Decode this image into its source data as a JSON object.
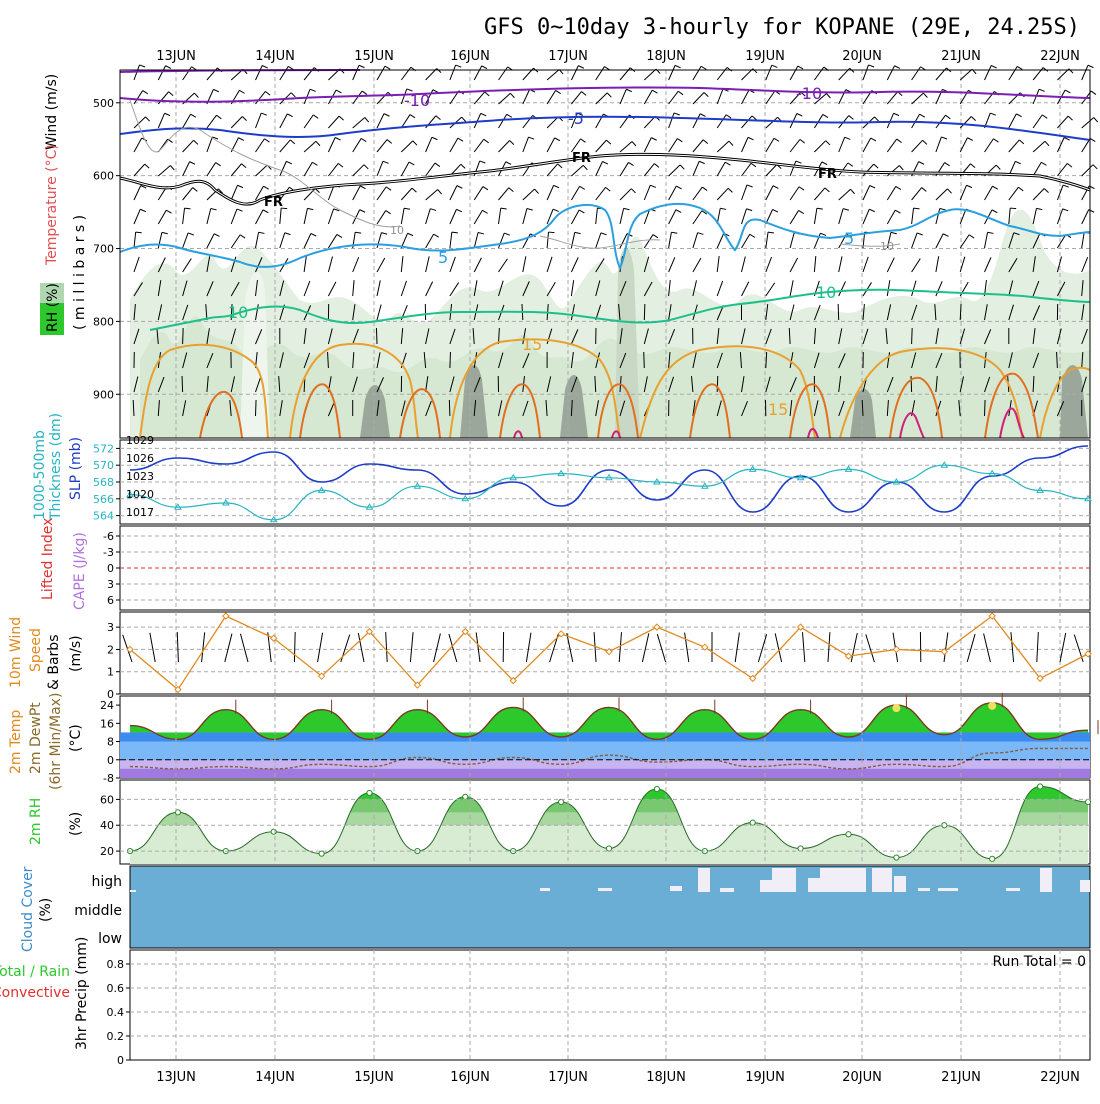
{
  "title": "GFS 0~10day 3-hourly for KOPANE (29E, 24.25S)",
  "dates": [
    "13JUN",
    "14JUN",
    "15JUN",
    "16JUN",
    "17JUN",
    "18JUN",
    "19JUN",
    "20JUN",
    "21JUN",
    "22JUN"
  ],
  "panels": {
    "upper_air": {
      "labels": [
        "Wind (m/s)",
        "Temperature (°C)",
        "( m i l l i b a r s )",
        "RH (%)"
      ],
      "yticks": [
        500,
        600,
        700,
        800,
        900
      ],
      "contour_labels": {
        "minus10": "-10",
        "minus5": "-5",
        "fr": "FR",
        "c5": "5",
        "c10": "10",
        "c15": "15",
        "rh10": "10"
      }
    },
    "slp": {
      "labels": [
        "1000-500mb",
        "Thickness (dm)",
        "SLP (mb)"
      ],
      "left_ticks": [
        572,
        570,
        568,
        566,
        564
      ],
      "right_ticks": [
        1029,
        1026,
        1023,
        1020,
        1017
      ]
    },
    "cape": {
      "labels": [
        "Lifted Index",
        "CAPE (J/kg)"
      ],
      "ticks": [
        "-6",
        "-3",
        "0",
        "3",
        "6"
      ]
    },
    "wind10m": {
      "labels": [
        "10m Wind",
        "Speed",
        "& Barbs",
        "(m/s)"
      ],
      "ticks": [
        3,
        2,
        1,
        0
      ]
    },
    "temp2m": {
      "labels": [
        "2m Temp",
        "2m DewPt",
        "(6hr Min/Max)",
        "(°C)"
      ],
      "ticks": [
        24,
        16,
        8,
        0,
        -8
      ]
    },
    "rh2m": {
      "labels": [
        "2m RH",
        "(%)"
      ],
      "ticks": [
        60,
        40,
        20
      ]
    },
    "cloud": {
      "labels": [
        "Cloud Cover",
        "(%)"
      ],
      "levels": [
        "high",
        "middle",
        "low"
      ]
    },
    "precip": {
      "labels": [
        "Total / Rain",
        "Convective",
        "3hr Precip (mm)"
      ],
      "ticks": [
        "0.8",
        "0.6",
        "0.4",
        "0.2",
        "0"
      ],
      "run_total": "Run Total = 0"
    }
  },
  "colors": {
    "slp": "#1e3cc8",
    "thickness": "#28b4c0",
    "speed": "#e08a1e",
    "temp_fill": "#2cc82c",
    "dew_fill": "#3c8cf0",
    "rh_fill": "#2cc82c",
    "cloud": "#6aaed6",
    "lifted": "#e03030",
    "cape": "#b070e0"
  },
  "chart_data": [
    {
      "type": "line",
      "title": "1000-500mb Thickness (dm) / SLP (mb)",
      "x": [
        "12JUN 12Z",
        "13JUN 00Z",
        "13JUN 12Z",
        "14JUN 00Z",
        "14JUN 12Z",
        "15JUN 00Z",
        "15JUN 12Z",
        "16JUN 00Z",
        "16JUN 12Z",
        "17JUN 00Z",
        "17JUN 12Z",
        "18JUN 00Z",
        "18JUN 12Z",
        "19JUN 00Z",
        "19JUN 12Z",
        "20JUN 00Z",
        "20JUN 12Z",
        "21JUN 00Z",
        "21JUN 12Z",
        "22JUN 00Z",
        "22JUN 06Z"
      ],
      "series": [
        {
          "name": "SLP (mb)",
          "values": [
            1024,
            1026,
            1025,
            1027,
            1022,
            1025,
            1024,
            1020,
            1022,
            1018,
            1024,
            1019,
            1024,
            1017,
            1023,
            1017,
            1022,
            1017,
            1023,
            1026,
            1028
          ]
        },
        {
          "name": "1000-500mb Thickness (dm)",
          "values": [
            566.5,
            565,
            565.5,
            563.5,
            567,
            565,
            567.5,
            566,
            568.5,
            569,
            568.5,
            568,
            567.5,
            569.5,
            568.5,
            569.5,
            568,
            570,
            569,
            567,
            566
          ]
        }
      ],
      "ylim_left": [
        563,
        573
      ],
      "ylim_right": [
        1015,
        1029
      ]
    },
    {
      "type": "line",
      "title": "10m Wind Speed (m/s)",
      "x": [
        "12JUN 12Z",
        "13JUN 00Z",
        "13JUN 12Z",
        "14JUN 00Z",
        "14JUN 12Z",
        "15JUN 00Z",
        "15JUN 12Z",
        "16JUN 00Z",
        "16JUN 12Z",
        "17JUN 00Z",
        "17JUN 12Z",
        "18JUN 00Z",
        "18JUN 12Z",
        "19JUN 00Z",
        "19JUN 12Z",
        "20JUN 00Z",
        "20JUN 12Z",
        "21JUN 00Z",
        "21JUN 12Z",
        "22JUN 00Z",
        "22JUN 06Z"
      ],
      "series": [
        {
          "name": "10m Wind Speed",
          "values": [
            2,
            0.2,
            3.5,
            2.5,
            0.8,
            2.8,
            0.4,
            2.8,
            0.6,
            2.7,
            1.9,
            3,
            2.1,
            0.7,
            3,
            1.7,
            2,
            1.9,
            3.5,
            0.7,
            1.8
          ]
        }
      ],
      "ylim": [
        0,
        3.5
      ]
    },
    {
      "type": "area",
      "title": "2m Temp / 2m DewPt (°C)",
      "x": [
        "12JUN 12Z",
        "13JUN 00Z",
        "13JUN 12Z",
        "14JUN 00Z",
        "14JUN 12Z",
        "15JUN 00Z",
        "15JUN 12Z",
        "16JUN 00Z",
        "16JUN 12Z",
        "17JUN 00Z",
        "17JUN 12Z",
        "18JUN 00Z",
        "18JUN 12Z",
        "19JUN 00Z",
        "19JUN 12Z",
        "20JUN 00Z",
        "20JUN 12Z",
        "21JUN 00Z",
        "21JUN 12Z",
        "22JUN 00Z",
        "22JUN 06Z"
      ],
      "series": [
        {
          "name": "2m Temp",
          "values": [
            15,
            9,
            22,
            9,
            22,
            9,
            22,
            10,
            23,
            10,
            23,
            9,
            22,
            9,
            22,
            10,
            24,
            11,
            25,
            9,
            13
          ]
        },
        {
          "name": "2m DewPt",
          "values": [
            -3,
            -4,
            -3,
            -4,
            -2,
            -3,
            1,
            -2,
            1,
            -2,
            2,
            -1,
            0,
            -3,
            -2,
            -4,
            -2,
            -3,
            3,
            5,
            5
          ]
        }
      ],
      "ylim": [
        -8,
        28
      ]
    },
    {
      "type": "area",
      "title": "2m RH (%)",
      "x": [
        "12JUN 12Z",
        "13JUN 00Z",
        "13JUN 12Z",
        "14JUN 00Z",
        "14JUN 12Z",
        "15JUN 00Z",
        "15JUN 12Z",
        "16JUN 00Z",
        "16JUN 12Z",
        "17JUN 00Z",
        "17JUN 12Z",
        "18JUN 00Z",
        "18JUN 12Z",
        "19JUN 00Z",
        "19JUN 12Z",
        "20JUN 00Z",
        "20JUN 12Z",
        "21JUN 00Z",
        "21JUN 12Z",
        "22JUN 00Z",
        "22JUN 06Z"
      ],
      "series": [
        {
          "name": "2m RH",
          "values": [
            20,
            50,
            20,
            35,
            18,
            65,
            20,
            62,
            20,
            58,
            22,
            68,
            20,
            42,
            22,
            33,
            15,
            40,
            14,
            70,
            58
          ]
        }
      ],
      "ylim": [
        10,
        75
      ]
    },
    {
      "type": "bar",
      "title": "3hr Precip (mm)",
      "x": [
        "13JUN",
        "22JUN"
      ],
      "series": [
        {
          "name": "Total / Rain",
          "values": [
            0,
            0
          ]
        },
        {
          "name": "Convective",
          "values": [
            0,
            0
          ]
        }
      ],
      "ylim": [
        0,
        0.9
      ]
    }
  ]
}
